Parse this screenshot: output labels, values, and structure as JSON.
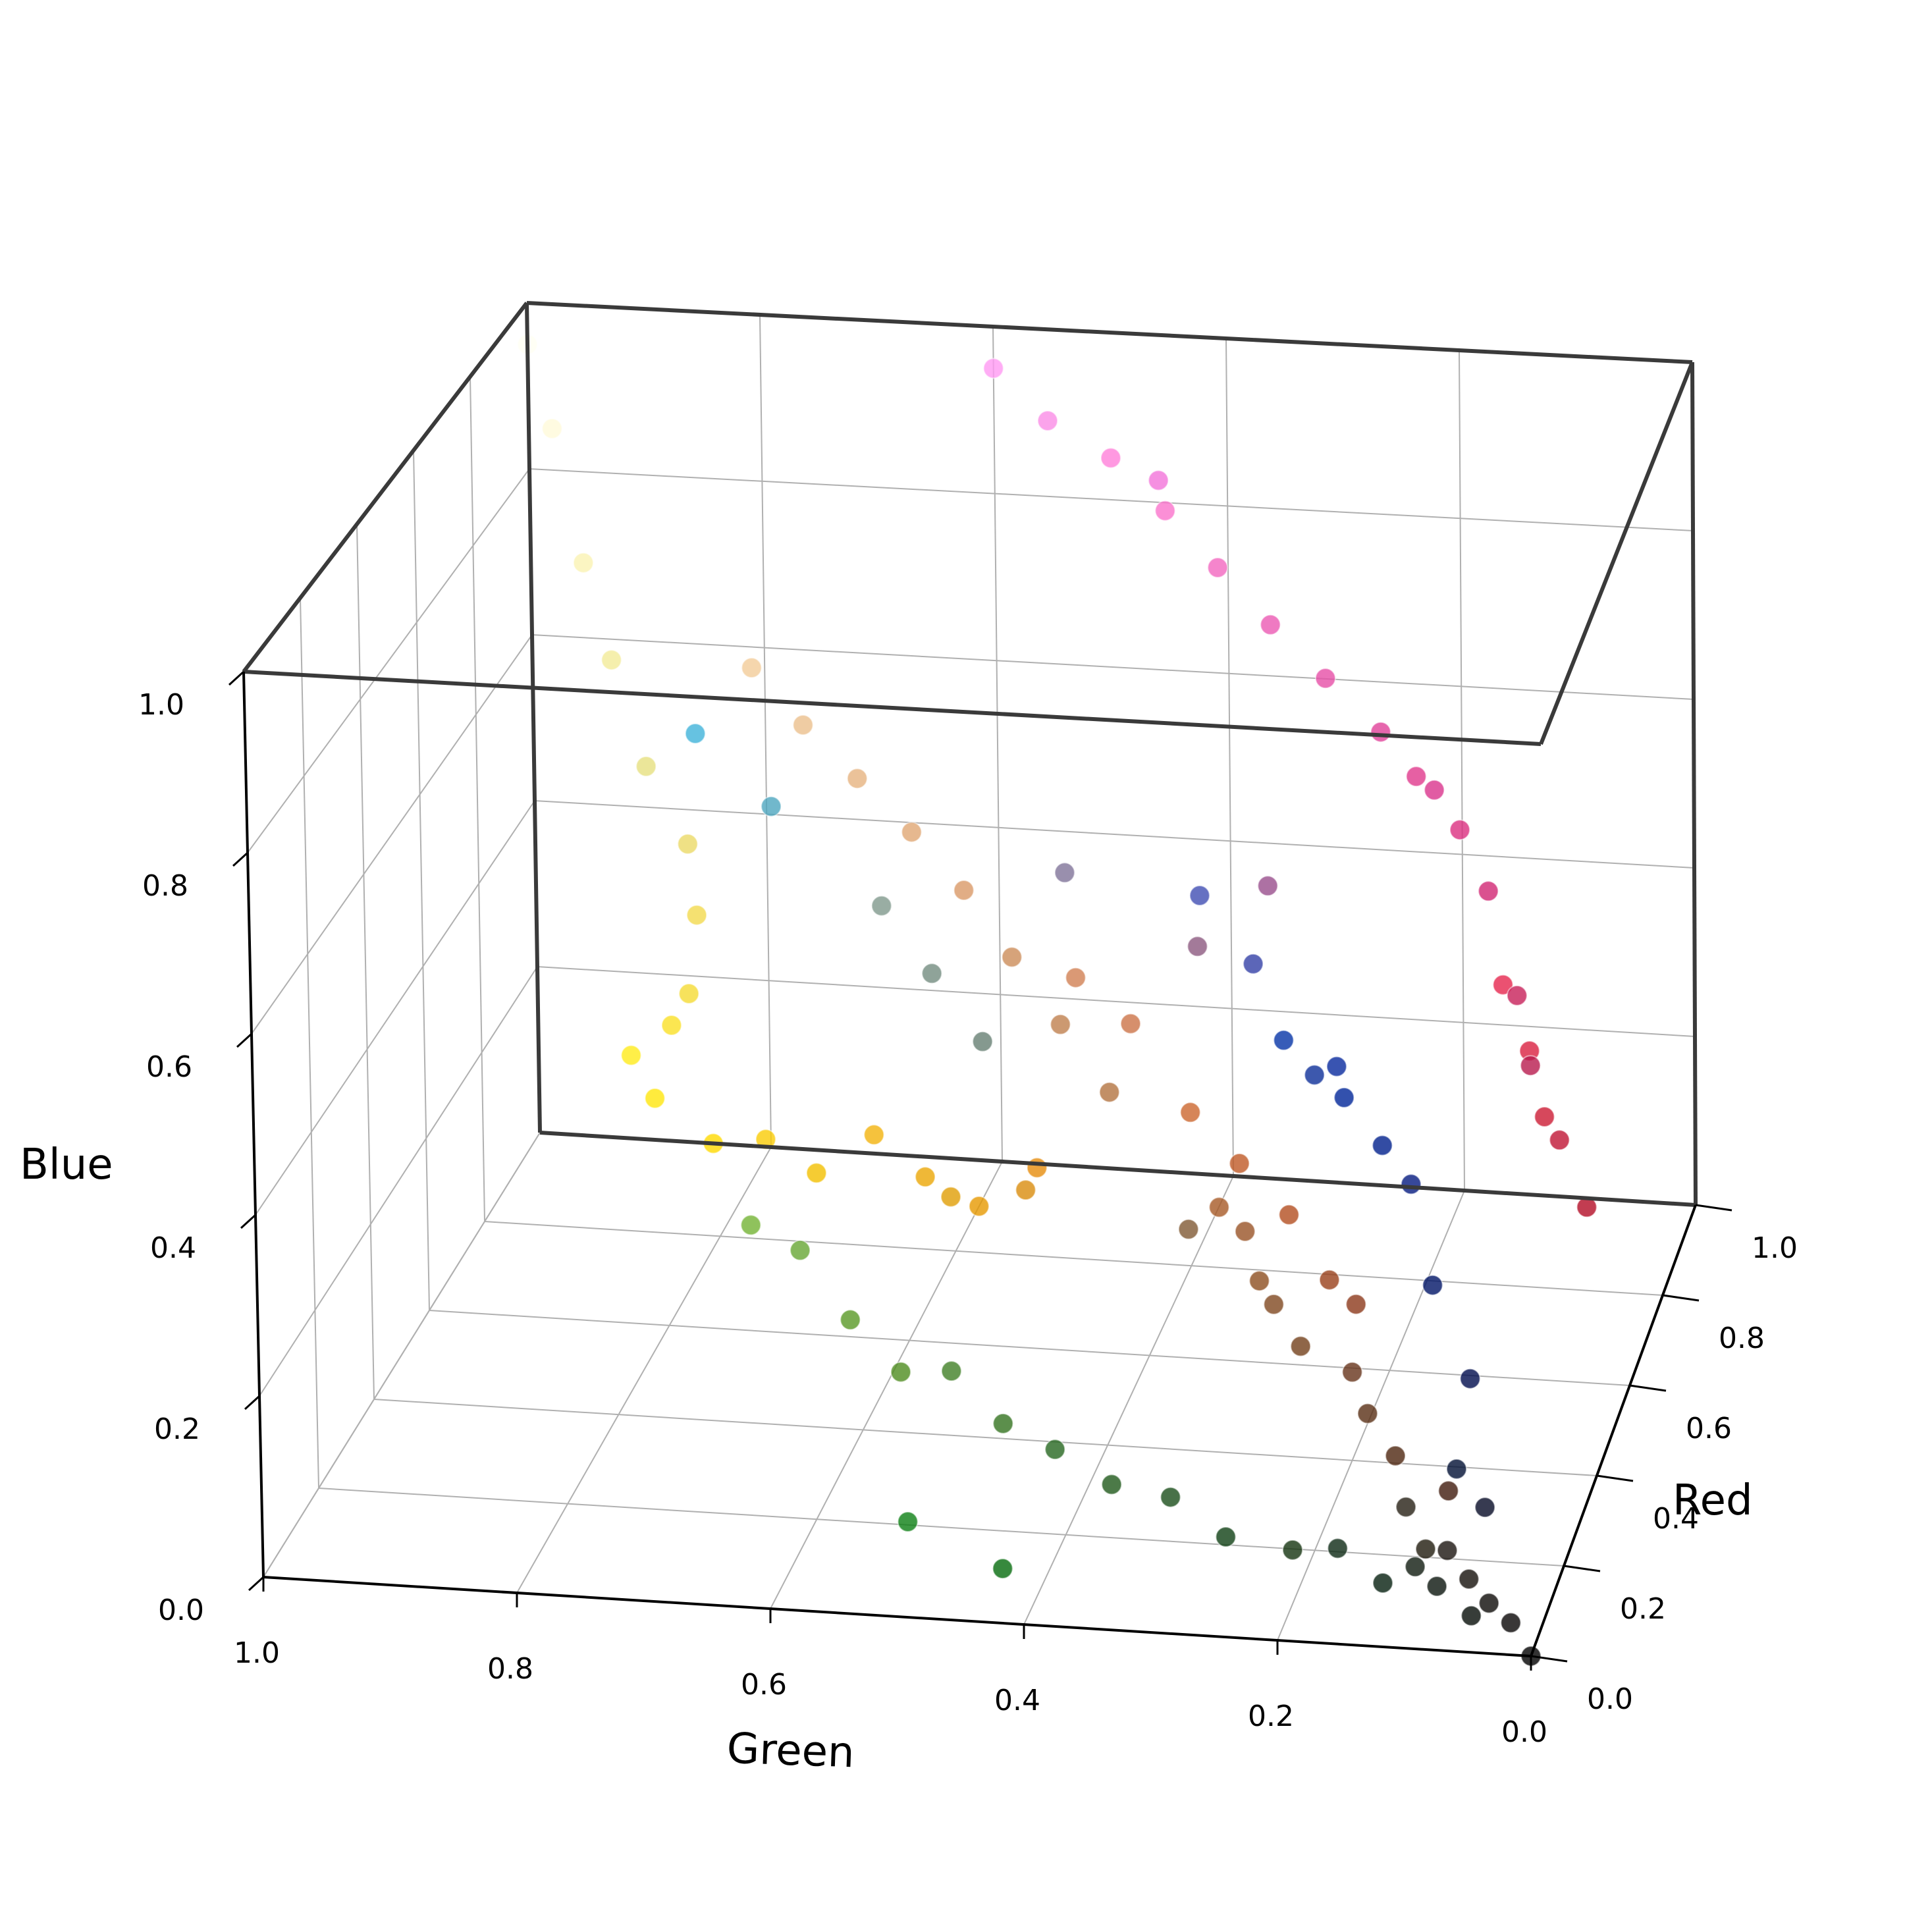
{
  "chart_data": {
    "type": "scatter",
    "projection": "3d",
    "xlabel": "Red",
    "ylabel": "Green",
    "zlabel": "Blue",
    "xlim": [
      0,
      1
    ],
    "ylim": [
      0,
      1
    ],
    "zlim": [
      0,
      1
    ],
    "x_ticks": [
      "0.0",
      "0.2",
      "0.4",
      "0.6",
      "0.8",
      "1.0"
    ],
    "y_ticks": [
      "0.0",
      "0.2",
      "0.4",
      "0.6",
      "0.8",
      "1.0"
    ],
    "z_ticks": [
      "0.0",
      "0.2",
      "0.4",
      "0.6",
      "0.8",
      "1.0"
    ],
    "grid": true,
    "point_color": "each point colored by its own (Red, Green, Blue) value",
    "points": [
      [
        0.0,
        0.0,
        0.0
      ],
      [
        0.03,
        0.02,
        0.02
      ],
      [
        0.05,
        0.04,
        0.03
      ],
      [
        0.02,
        0.05,
        0.03
      ],
      [
        0.08,
        0.06,
        0.04
      ],
      [
        0.1,
        0.08,
        0.06
      ],
      [
        0.12,
        0.1,
        0.05
      ],
      [
        0.06,
        0.1,
        0.06
      ],
      [
        0.04,
        0.08,
        0.05
      ],
      [
        0.15,
        0.12,
        0.08
      ],
      [
        0.02,
        0.12,
        0.06
      ],
      [
        0.05,
        0.16,
        0.08
      ],
      [
        0.08,
        0.2,
        0.06
      ],
      [
        0.06,
        0.25,
        0.08
      ],
      [
        0.1,
        0.3,
        0.1
      ],
      [
        0.12,
        0.35,
        0.1
      ],
      [
        0.15,
        0.4,
        0.12
      ],
      [
        0.2,
        0.45,
        0.12
      ],
      [
        0.25,
        0.5,
        0.15
      ],
      [
        0.3,
        0.55,
        0.12
      ],
      [
        0.35,
        0.6,
        0.15
      ],
      [
        0.4,
        0.65,
        0.2
      ],
      [
        0.45,
        0.7,
        0.2
      ],
      [
        0.02,
        0.42,
        0.05
      ],
      [
        0.05,
        0.5,
        0.08
      ],
      [
        0.25,
        0.1,
        0.05
      ],
      [
        0.3,
        0.15,
        0.06
      ],
      [
        0.35,
        0.18,
        0.08
      ],
      [
        0.4,
        0.2,
        0.1
      ],
      [
        0.45,
        0.25,
        0.1
      ],
      [
        0.5,
        0.28,
        0.12
      ],
      [
        0.55,
        0.3,
        0.12
      ],
      [
        0.6,
        0.32,
        0.15
      ],
      [
        0.65,
        0.35,
        0.15
      ],
      [
        0.55,
        0.22,
        0.1
      ],
      [
        0.6,
        0.25,
        0.1
      ],
      [
        0.7,
        0.3,
        0.12
      ],
      [
        0.75,
        0.35,
        0.15
      ],
      [
        0.8,
        0.4,
        0.18
      ],
      [
        0.5,
        0.35,
        0.2
      ],
      [
        0.7,
        0.45,
        0.25
      ],
      [
        0.75,
        0.5,
        0.3
      ],
      [
        0.8,
        0.55,
        0.35
      ],
      [
        0.85,
        0.6,
        0.4
      ],
      [
        0.88,
        0.65,
        0.45
      ],
      [
        0.9,
        0.7,
        0.5
      ],
      [
        0.92,
        0.75,
        0.55
      ],
      [
        0.95,
        0.8,
        0.6
      ],
      [
        0.8,
        0.45,
        0.28
      ],
      [
        0.82,
        0.5,
        0.32
      ],
      [
        0.9,
        0.6,
        0.0
      ],
      [
        0.92,
        0.65,
        0.02
      ],
      [
        0.95,
        0.7,
        0.05
      ],
      [
        0.88,
        0.62,
        0.02
      ],
      [
        0.9,
        0.55,
        0.05
      ],
      [
        0.85,
        0.55,
        0.05
      ],
      [
        0.95,
        0.75,
        0.0
      ],
      [
        0.98,
        0.8,
        0.02
      ],
      [
        1.0,
        0.85,
        0.0
      ],
      [
        1.0,
        0.9,
        0.05
      ],
      [
        1.0,
        0.92,
        0.1
      ],
      [
        0.98,
        0.88,
        0.15
      ],
      [
        0.96,
        0.86,
        0.2
      ],
      [
        0.95,
        0.85,
        0.3
      ],
      [
        0.92,
        0.85,
        0.4
      ],
      [
        0.9,
        0.88,
        0.5
      ],
      [
        0.95,
        0.92,
        0.6
      ],
      [
        0.98,
        0.95,
        0.7
      ],
      [
        1.0,
        0.98,
        0.85
      ],
      [
        1.0,
        1.0,
        0.95
      ],
      [
        0.0,
        0.05,
        0.3
      ],
      [
        0.0,
        0.08,
        0.4
      ],
      [
        0.02,
        0.1,
        0.5
      ],
      [
        0.0,
        0.15,
        0.6
      ],
      [
        0.02,
        0.2,
        0.65
      ],
      [
        0.05,
        0.18,
        0.6
      ],
      [
        0.0,
        0.12,
        0.55
      ],
      [
        0.03,
        0.16,
        0.62
      ],
      [
        0.0,
        0.06,
        0.2
      ],
      [
        0.02,
        0.04,
        0.15
      ],
      [
        0.7,
        0.05,
        0.15
      ],
      [
        0.75,
        0.08,
        0.2
      ],
      [
        0.8,
        0.1,
        0.2
      ],
      [
        0.85,
        0.12,
        0.25
      ],
      [
        0.9,
        0.15,
        0.3
      ],
      [
        0.72,
        0.1,
        0.3
      ],
      [
        0.78,
        0.12,
        0.35
      ],
      [
        0.82,
        0.15,
        0.45
      ],
      [
        0.85,
        0.2,
        0.55
      ],
      [
        0.88,
        0.25,
        0.6
      ],
      [
        0.9,
        0.3,
        0.65
      ],
      [
        0.92,
        0.35,
        0.7
      ],
      [
        0.95,
        0.4,
        0.75
      ],
      [
        0.98,
        0.45,
        0.8
      ],
      [
        1.0,
        0.5,
        0.85
      ],
      [
        0.95,
        0.45,
        0.85
      ],
      [
        0.98,
        0.55,
        0.9
      ],
      [
        1.0,
        0.6,
        0.95
      ],
      [
        0.88,
        0.22,
        0.55
      ],
      [
        0.86,
        0.18,
        0.5
      ],
      [
        0.4,
        0.5,
        0.45
      ],
      [
        0.45,
        0.55,
        0.5
      ],
      [
        0.5,
        0.6,
        0.55
      ],
      [
        0.3,
        0.65,
        0.75
      ],
      [
        0.25,
        0.7,
        0.85
      ],
      [
        0.5,
        0.45,
        0.6
      ],
      [
        0.2,
        0.25,
        0.65
      ],
      [
        0.25,
        0.3,
        0.7
      ],
      [
        0.6,
        0.3,
        0.55
      ],
      [
        0.55,
        0.35,
        0.5
      ]
    ]
  }
}
